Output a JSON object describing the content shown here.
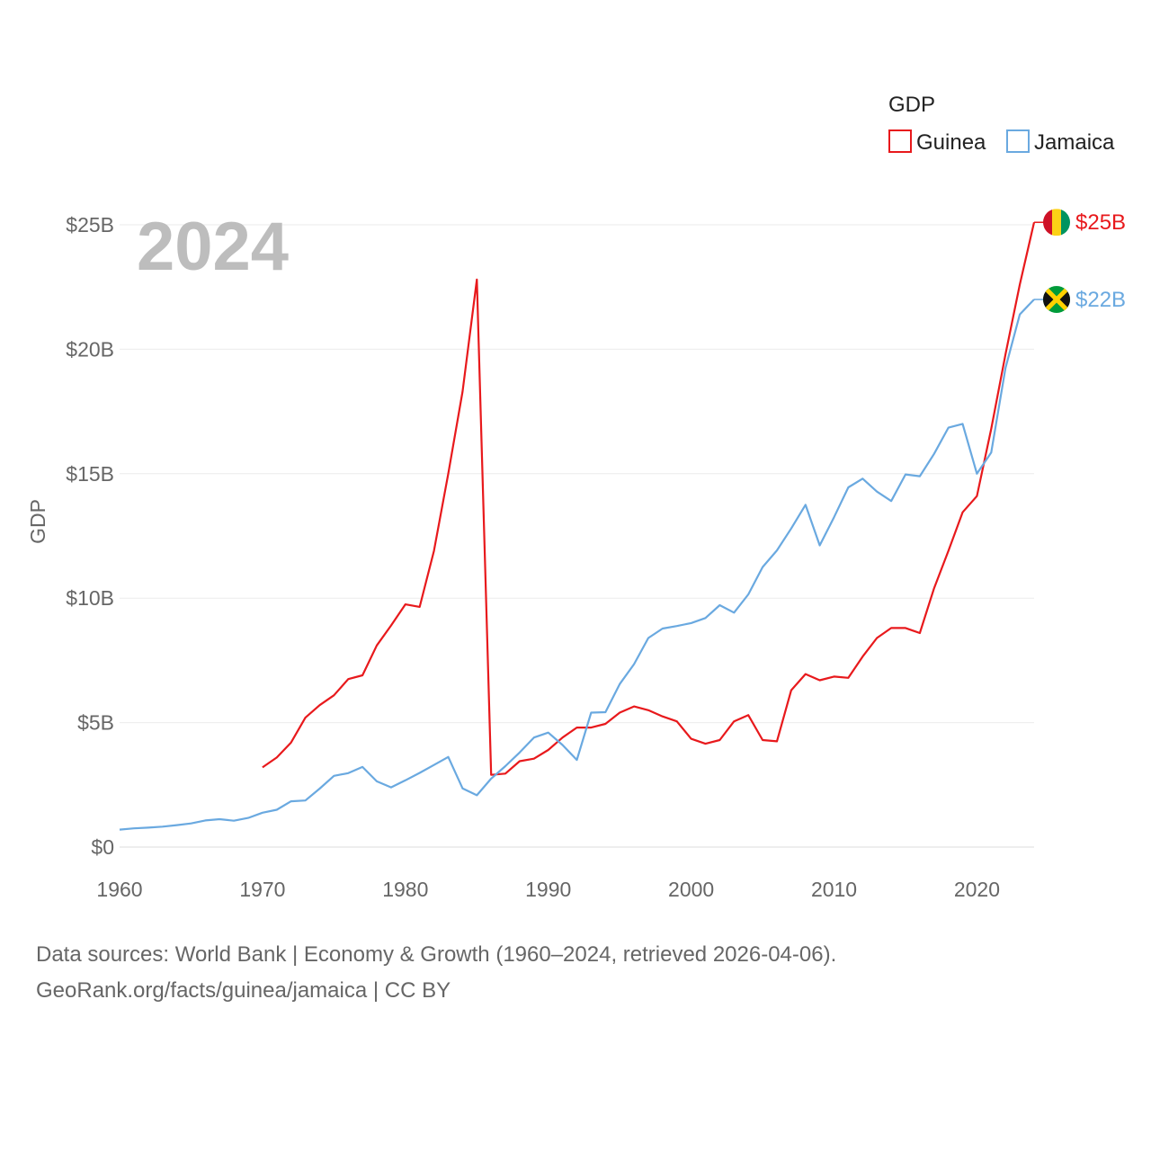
{
  "chart_data": {
    "type": "line",
    "title": "",
    "year_label": "2024",
    "xlabel": "",
    "ylabel": "GDP",
    "xlim": [
      1960,
      2024
    ],
    "ylim": [
      0,
      25
    ],
    "y_ticks": [
      {
        "value": 0,
        "label": "$0"
      },
      {
        "value": 5,
        "label": "$5B"
      },
      {
        "value": 10,
        "label": "$10B"
      },
      {
        "value": 15,
        "label": "$15B"
      },
      {
        "value": 20,
        "label": "$20B"
      },
      {
        "value": 25,
        "label": "$25B"
      }
    ],
    "x_ticks": [
      {
        "value": 1960,
        "label": "1960"
      },
      {
        "value": 1970,
        "label": "1970"
      },
      {
        "value": 1980,
        "label": "1980"
      },
      {
        "value": 1990,
        "label": "1990"
      },
      {
        "value": 2000,
        "label": "2000"
      },
      {
        "value": 2010,
        "label": "2010"
      },
      {
        "value": 2020,
        "label": "2020"
      }
    ],
    "legend": {
      "title": "GDP",
      "position": "top-right"
    },
    "series": [
      {
        "name": "Guinea",
        "color": "#e8191c",
        "end_label": "$25B",
        "flag": "guinea-flag",
        "x": [
          1970,
          1971,
          1972,
          1973,
          1974,
          1975,
          1976,
          1977,
          1978,
          1979,
          1980,
          1981,
          1982,
          1983,
          1984,
          1985,
          1986,
          1987,
          1988,
          1989,
          1990,
          1991,
          1992,
          1993,
          1994,
          1995,
          1996,
          1997,
          1998,
          1999,
          2000,
          2001,
          2002,
          2003,
          2004,
          2005,
          2006,
          2007,
          2008,
          2009,
          2010,
          2011,
          2012,
          2013,
          2014,
          2015,
          2016,
          2017,
          2018,
          2019,
          2020,
          2021,
          2022,
          2023,
          2024
        ],
        "values": [
          3.2,
          3.6,
          4.2,
          5.2,
          5.7,
          6.1,
          6.75,
          6.9,
          8.1,
          8.9,
          9.75,
          9.65,
          11.9,
          15.0,
          18.3,
          22.8,
          2.9,
          2.95,
          3.45,
          3.55,
          3.9,
          4.4,
          4.8,
          4.8,
          4.95,
          5.4,
          5.65,
          5.5,
          5.25,
          5.05,
          4.35,
          4.15,
          4.3,
          5.05,
          5.3,
          4.3,
          4.25,
          6.3,
          6.95,
          6.7,
          6.85,
          6.8,
          7.65,
          8.4,
          8.8,
          8.8,
          8.6,
          10.4,
          11.9,
          13.45,
          14.1,
          16.8,
          19.8,
          22.6,
          25.1
        ]
      },
      {
        "name": "Jamaica",
        "color": "#6aa9e0",
        "end_label": "$22B",
        "flag": "jamaica-flag",
        "x": [
          1960,
          1961,
          1962,
          1963,
          1964,
          1965,
          1966,
          1967,
          1968,
          1969,
          1970,
          1971,
          1972,
          1973,
          1974,
          1975,
          1976,
          1977,
          1978,
          1979,
          1980,
          1981,
          1982,
          1983,
          1984,
          1985,
          1986,
          1987,
          1988,
          1989,
          1990,
          1991,
          1992,
          1993,
          1994,
          1995,
          1996,
          1997,
          1998,
          1999,
          2000,
          2001,
          2002,
          2003,
          2004,
          2005,
          2006,
          2007,
          2008,
          2009,
          2010,
          2011,
          2012,
          2013,
          2014,
          2015,
          2016,
          2017,
          2018,
          2019,
          2020,
          2021,
          2022,
          2023,
          2024
        ],
        "values": [
          0.7,
          0.75,
          0.78,
          0.82,
          0.88,
          0.95,
          1.07,
          1.12,
          1.06,
          1.17,
          1.38,
          1.5,
          1.84,
          1.87,
          2.35,
          2.86,
          2.97,
          3.22,
          2.64,
          2.4,
          2.68,
          2.98,
          3.3,
          3.62,
          2.36,
          2.08,
          2.75,
          3.25,
          3.8,
          4.4,
          4.6,
          4.1,
          3.5,
          5.4,
          5.42,
          6.55,
          7.35,
          8.4,
          8.78,
          8.88,
          9.0,
          9.2,
          9.72,
          9.42,
          10.15,
          11.25,
          11.92,
          12.8,
          13.75,
          12.12,
          13.25,
          14.45,
          14.8,
          14.28,
          13.9,
          14.97,
          14.9,
          15.8,
          16.85,
          17.0,
          15.0,
          15.85,
          19.25,
          21.4,
          22.0
        ]
      }
    ]
  },
  "source": {
    "line1": "Data sources: World Bank | Economy & Growth (1960–2024, retrieved 2026-04-06).",
    "line2": "GeoRank.org/facts/guinea/jamaica | CC BY"
  }
}
